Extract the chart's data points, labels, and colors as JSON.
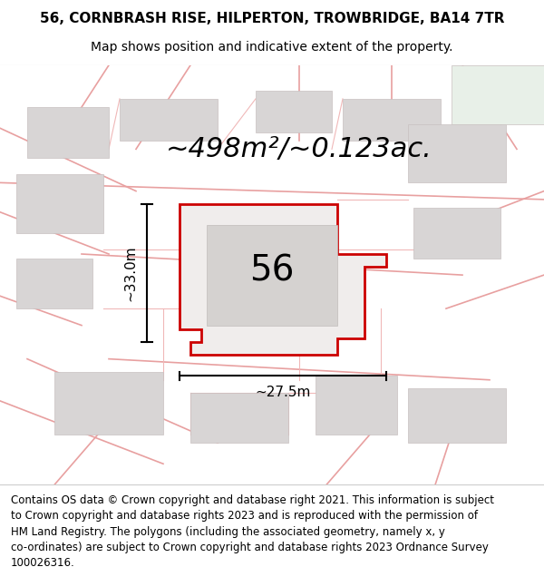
{
  "title_line1": "56, CORNBRASH RISE, HILPERTON, TROWBRIDGE, BA14 7TR",
  "title_line2": "Map shows position and indicative extent of the property.",
  "area_text": "~498m²/~0.123ac.",
  "label_56": "56",
  "dim_height": "~33.0m",
  "dim_width": "~27.5m",
  "footer_lines": [
    "Contains OS data © Crown copyright and database right 2021. This information is subject",
    "to Crown copyright and database rights 2023 and is reproduced with the permission of",
    "HM Land Registry. The polygons (including the associated geometry, namely x, y",
    "co-ordinates) are subject to Crown copyright and database rights 2023 Ordnance Survey",
    "100026316."
  ],
  "bg_color": "#f8f4f4",
  "plot_fill": "#f0edec",
  "plot_outline": "#cc0000",
  "road_color": "#e8a0a0",
  "road_color2": "#f0b8b8",
  "building_color": "#d8d5d5",
  "green_color": "#e8f0e8",
  "title_fontsize": 11,
  "subtitle_fontsize": 10,
  "area_fontsize": 22,
  "label_fontsize": 28,
  "dim_fontsize": 11,
  "footer_fontsize": 8.5
}
